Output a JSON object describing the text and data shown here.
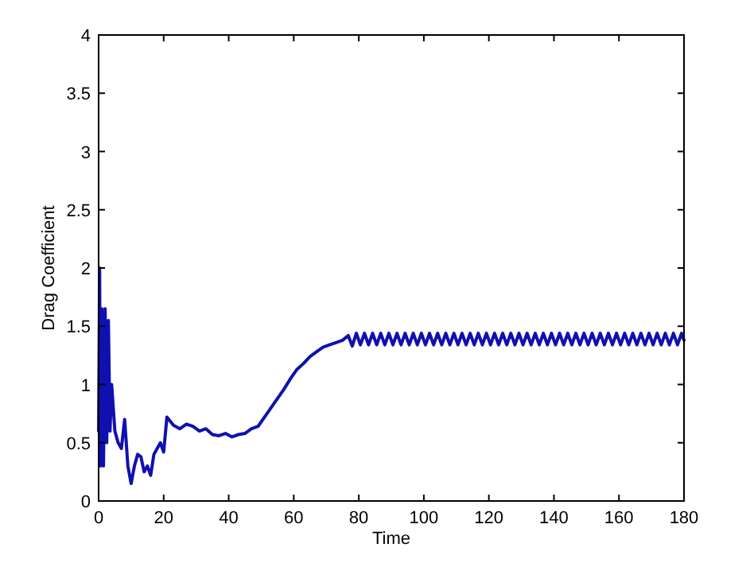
{
  "chart_data": {
    "type": "line",
    "xlabel": "Time",
    "ylabel": "Drag Coefficient",
    "xlim": [
      0,
      180
    ],
    "ylim": [
      0,
      4
    ],
    "xticks": [
      0,
      20,
      40,
      60,
      80,
      100,
      120,
      140,
      160,
      180
    ],
    "yticks": [
      0,
      0.5,
      1,
      1.5,
      2,
      2.5,
      3,
      3.5,
      4
    ],
    "grid": false,
    "line_style": "solid",
    "series": [
      {
        "color": "#1010b0",
        "x": [
          0,
          0.3,
          0.6,
          1,
          1.5,
          2,
          2.5,
          3,
          3.5,
          4,
          5,
          6,
          7,
          8,
          9,
          10,
          11,
          12,
          13,
          14,
          15,
          16,
          17,
          18,
          19,
          20,
          21,
          23,
          25,
          27,
          29,
          31,
          33,
          35,
          37,
          39,
          41,
          43,
          45,
          47,
          49,
          51,
          53,
          55,
          57,
          59,
          61,
          63,
          65,
          67,
          69,
          71,
          73,
          75,
          76.75,
          78.0,
          79.25,
          80.5,
          81.75,
          83.0,
          84.25,
          85.5,
          86.75,
          88.0,
          89.25,
          90.5,
          91.75,
          93.0,
          94.25,
          95.5,
          96.75,
          98.0,
          99.25,
          100.5,
          101.75,
          103.0,
          104.25,
          105.5,
          106.75,
          108.0,
          109.25,
          110.5,
          111.75,
          113.0,
          114.25,
          115.5,
          116.75,
          118.0,
          119.25,
          120.5,
          121.75,
          123.0,
          124.25,
          125.5,
          126.75,
          128.0,
          129.25,
          130.5,
          131.75,
          133.0,
          134.25,
          135.5,
          136.75,
          138.0,
          139.25,
          140.5,
          141.75,
          143.0,
          144.25,
          145.5,
          146.75,
          148.0,
          149.25,
          150.5,
          151.75,
          153.0,
          154.25,
          155.5,
          156.75,
          158.0,
          159.25,
          160.5,
          161.75,
          163.0,
          164.25,
          165.5,
          166.75,
          168.0,
          169.25,
          170.5,
          171.75,
          173.0,
          174.25,
          175.5,
          176.75,
          178.0,
          179.25,
          180
        ],
        "values": [
          0.6,
          2.0,
          0.3,
          1.65,
          0.3,
          1.65,
          0.5,
          1.55,
          0.6,
          1.0,
          0.6,
          0.5,
          0.45,
          0.7,
          0.3,
          0.15,
          0.3,
          0.4,
          0.38,
          0.25,
          0.3,
          0.22,
          0.4,
          0.45,
          0.5,
          0.42,
          0.72,
          0.65,
          0.62,
          0.66,
          0.64,
          0.6,
          0.62,
          0.57,
          0.56,
          0.58,
          0.55,
          0.57,
          0.58,
          0.62,
          0.64,
          0.72,
          0.8,
          0.88,
          0.96,
          1.05,
          1.13,
          1.18,
          1.24,
          1.28,
          1.32,
          1.34,
          1.36,
          1.38,
          1.42,
          1.33,
          1.44,
          1.34,
          1.44,
          1.34,
          1.44,
          1.34,
          1.44,
          1.34,
          1.44,
          1.34,
          1.44,
          1.34,
          1.44,
          1.34,
          1.44,
          1.34,
          1.44,
          1.34,
          1.44,
          1.34,
          1.44,
          1.34,
          1.44,
          1.34,
          1.44,
          1.34,
          1.44,
          1.34,
          1.44,
          1.34,
          1.44,
          1.34,
          1.44,
          1.34,
          1.44,
          1.34,
          1.44,
          1.34,
          1.44,
          1.34,
          1.44,
          1.34,
          1.44,
          1.34,
          1.44,
          1.34,
          1.44,
          1.34,
          1.44,
          1.34,
          1.44,
          1.34,
          1.44,
          1.34,
          1.44,
          1.34,
          1.44,
          1.34,
          1.44,
          1.34,
          1.44,
          1.34,
          1.44,
          1.34,
          1.44,
          1.34,
          1.44,
          1.34,
          1.44,
          1.34,
          1.44,
          1.34,
          1.44,
          1.34,
          1.44,
          1.34,
          1.44,
          1.34,
          1.44,
          1.34,
          1.44,
          1.38
        ]
      }
    ]
  }
}
